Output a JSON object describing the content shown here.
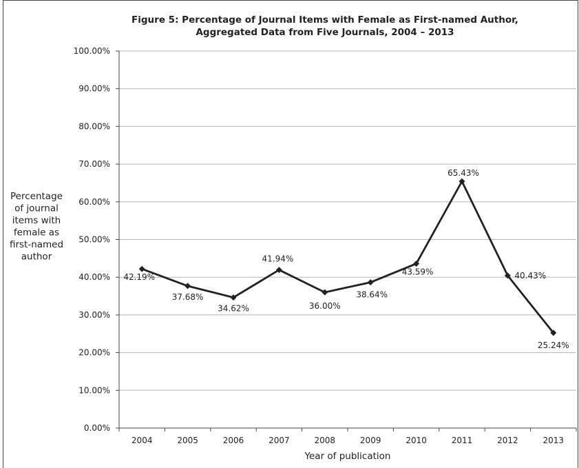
{
  "chart_data": {
    "type": "line",
    "title": [
      "Figure 5:  Percentage of Journal Items with Female as First-named Author,",
      "Aggregated Data from Five Journals, 2004 – 2013"
    ],
    "xlabel": "Year of publication",
    "ylabel": [
      "Percentage",
      "of  journal",
      "items with",
      "female as",
      "first-named",
      "author"
    ],
    "categories": [
      "2004",
      "2005",
      "2006",
      "2007",
      "2008",
      "2009",
      "2010",
      "2011",
      "2012",
      "2013"
    ],
    "values": [
      42.19,
      37.68,
      34.62,
      41.94,
      36.0,
      38.64,
      43.59,
      65.43,
      40.43,
      25.24
    ],
    "data_labels": [
      "42.19%",
      "37.68%",
      "34.62%",
      "41.94%",
      "36.00%",
      "38.64%",
      "43.59%",
      "65.43%",
      "40.43%",
      "25.24%"
    ],
    "ylim": [
      0,
      100
    ],
    "y_ticks": [
      "0.00%",
      "10.00%",
      "20.00%",
      "30.00%",
      "40.00%",
      "50.00%",
      "60.00%",
      "70.00%",
      "80.00%",
      "90.00%",
      "100.00%"
    ],
    "grid": true,
    "legend": "none",
    "colors": {
      "line": "#222222",
      "grid": "#b5b5b5",
      "axis": "#444444"
    }
  }
}
